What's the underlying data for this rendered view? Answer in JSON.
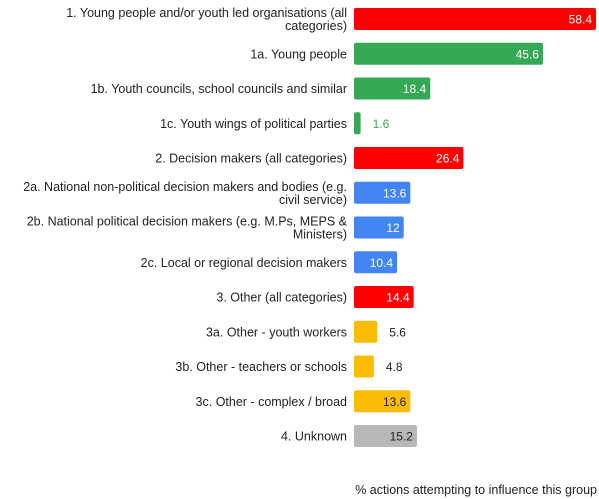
{
  "chart_data": {
    "type": "bar",
    "orientation": "horizontal",
    "categories": [
      "1. Young people and/or youth led organisations (all categories)",
      "1a. Young people",
      "1b. Youth councils, school councils and similar",
      "1c. Youth wings of political parties",
      "2. Decision makers (all categories)",
      "2a. National non-political decision makers and bodies (e.g. civil service)",
      "2b. National political decision makers (e.g. M.Ps, MEPS & Ministers)",
      "2c. Local or regional decision makers",
      "3. Other (all categories)",
      "3a. Other - youth workers",
      "3b. Other - teachers or schools",
      "3c. Other - complex  / broad",
      "4. Unknown"
    ],
    "values": [
      58.4,
      45.6,
      18.4,
      1.6,
      26.4,
      13.6,
      12,
      10.4,
      14.4,
      5.6,
      4.8,
      13.6,
      15.2
    ],
    "value_labels": [
      "58.4",
      "45.6",
      "18.4",
      "1.6",
      "26.4",
      "13.6",
      "12",
      "10.4",
      "14.4",
      "5.6",
      "4.8",
      "13.6",
      "15.2"
    ],
    "colors": [
      "#ff0000",
      "#34a853",
      "#34a853",
      "#34a853",
      "#ff0000",
      "#4285f4",
      "#4285f4",
      "#4285f4",
      "#ff0000",
      "#fbbc04",
      "#fbbc04",
      "#fbbc04",
      "#b7b7b7"
    ],
    "label_colors": [
      "#ffffff",
      "#ffffff",
      "#ffffff",
      "#34a853",
      "#ffffff",
      "#ffffff",
      "#ffffff",
      "#ffffff",
      "#ffffff",
      "#222222",
      "#222222",
      "#222222",
      "#222222"
    ],
    "xlabel": "% actions attempting to influence this group",
    "title": "",
    "ylabel": "",
    "xlim": [
      0,
      58.4
    ],
    "grid": false
  }
}
